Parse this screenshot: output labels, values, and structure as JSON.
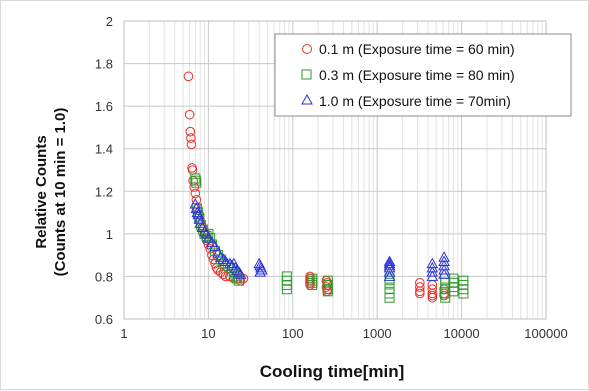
{
  "chart_data": {
    "type": "scatter",
    "xlabel": "Cooling time[min]",
    "ylabel_line1": "Relative Counts",
    "ylabel_line2": "(Counts at 10 min = 1.0)",
    "x_scale": "log",
    "xlim": [
      1,
      100000
    ],
    "ylim": [
      0.6,
      2.0
    ],
    "x_ticks": [
      "1",
      "10",
      "100",
      "1000",
      "10000",
      "100000"
    ],
    "y_ticks": [
      "0.6",
      "0.8",
      "1",
      "1.2",
      "1.4",
      "1.6",
      "1.8",
      "2"
    ],
    "grid": true,
    "legend_position": "top-right",
    "series": [
      {
        "name": "0.1 m (Exposure time = 60 min)",
        "marker": "circle",
        "color": "#e8302a",
        "points": [
          [
            5.8,
            1.74
          ],
          [
            6.0,
            1.56
          ],
          [
            6.1,
            1.48
          ],
          [
            6.2,
            1.45
          ],
          [
            6.3,
            1.42
          ],
          [
            6.4,
            1.31
          ],
          [
            6.5,
            1.3
          ],
          [
            6.6,
            1.25
          ],
          [
            6.8,
            1.22
          ],
          [
            7.0,
            1.19
          ],
          [
            7.2,
            1.16
          ],
          [
            7.5,
            1.12
          ],
          [
            7.8,
            1.09
          ],
          [
            8.0,
            1.06
          ],
          [
            8.5,
            1.03
          ],
          [
            9.0,
            1.0
          ],
          [
            9.5,
            0.97
          ],
          [
            10,
            0.95
          ],
          [
            10.5,
            0.93
          ],
          [
            11,
            0.9
          ],
          [
            11.5,
            0.88
          ],
          [
            12,
            0.86
          ],
          [
            12.5,
            0.84
          ],
          [
            13,
            0.83
          ],
          [
            14,
            0.82
          ],
          [
            15,
            0.81
          ],
          [
            16,
            0.8
          ],
          [
            18,
            0.8
          ],
          [
            20,
            0.79
          ],
          [
            22,
            0.79
          ],
          [
            24,
            0.78
          ],
          [
            26,
            0.79
          ],
          [
            160,
            0.8
          ],
          [
            160,
            0.79
          ],
          [
            160,
            0.78
          ],
          [
            160,
            0.77
          ],
          [
            160,
            0.76
          ],
          [
            250,
            0.78
          ],
          [
            255,
            0.77
          ],
          [
            260,
            0.76
          ],
          [
            250,
            0.75
          ],
          [
            260,
            0.74
          ],
          [
            255,
            0.73
          ],
          [
            3200,
            0.77
          ],
          [
            3200,
            0.75
          ],
          [
            3200,
            0.73
          ],
          [
            3200,
            0.72
          ],
          [
            4500,
            0.76
          ],
          [
            4500,
            0.74
          ],
          [
            4500,
            0.72
          ],
          [
            4500,
            0.71
          ],
          [
            4500,
            0.7
          ],
          [
            6200,
            0.74
          ],
          [
            6200,
            0.72
          ],
          [
            6200,
            0.71
          ]
        ]
      },
      {
        "name": "0.3 m (Exposure time = 80 min)",
        "marker": "square",
        "color": "#2e9a2e",
        "points": [
          [
            7.0,
            1.26
          ],
          [
            7.1,
            1.25
          ],
          [
            7.2,
            1.24
          ],
          [
            7.3,
            1.12
          ],
          [
            7.5,
            1.1
          ],
          [
            7.8,
            1.07
          ],
          [
            8.2,
            1.04
          ],
          [
            8.6,
            1.02
          ],
          [
            9.0,
            1.0
          ],
          [
            9.5,
            0.99
          ],
          [
            10,
            1.0
          ],
          [
            10.5,
            0.98
          ],
          [
            11,
            0.95
          ],
          [
            12,
            0.92
          ],
          [
            13,
            0.9
          ],
          [
            14,
            0.88
          ],
          [
            15,
            0.86
          ],
          [
            17,
            0.85
          ],
          [
            19,
            0.84
          ],
          [
            20,
            0.82
          ],
          [
            21,
            0.8
          ],
          [
            22,
            0.79
          ],
          [
            23,
            0.78
          ],
          [
            85,
            0.8
          ],
          [
            85,
            0.78
          ],
          [
            85,
            0.76
          ],
          [
            85,
            0.74
          ],
          [
            170,
            0.79
          ],
          [
            170,
            0.78
          ],
          [
            170,
            0.77
          ],
          [
            170,
            0.76
          ],
          [
            260,
            0.78
          ],
          [
            260,
            0.76
          ],
          [
            260,
            0.74
          ],
          [
            260,
            0.73
          ],
          [
            1400,
            0.79
          ],
          [
            1400,
            0.77
          ],
          [
            1400,
            0.74
          ],
          [
            1400,
            0.72
          ],
          [
            1400,
            0.7
          ],
          [
            6400,
            0.79
          ],
          [
            6400,
            0.77
          ],
          [
            6400,
            0.74
          ],
          [
            6400,
            0.72
          ],
          [
            6400,
            0.7
          ],
          [
            8000,
            0.79
          ],
          [
            8000,
            0.77
          ],
          [
            8000,
            0.75
          ],
          [
            8000,
            0.73
          ],
          [
            10500,
            0.78
          ],
          [
            10500,
            0.76
          ],
          [
            10500,
            0.74
          ],
          [
            10500,
            0.72
          ]
        ]
      },
      {
        "name": "1.0 m (Exposure time = 70min)",
        "marker": "triangle",
        "color": "#2a34d8",
        "points": [
          [
            7.0,
            1.14
          ],
          [
            7.2,
            1.12
          ],
          [
            7.4,
            1.1
          ],
          [
            7.6,
            1.09
          ],
          [
            7.8,
            1.07
          ],
          [
            8.0,
            1.05
          ],
          [
            8.5,
            1.03
          ],
          [
            9.0,
            1.01
          ],
          [
            9.5,
            1.0
          ],
          [
            10,
            0.98
          ],
          [
            11,
            0.96
          ],
          [
            12,
            0.94
          ],
          [
            13,
            0.91
          ],
          [
            14,
            0.89
          ],
          [
            15,
            0.88
          ],
          [
            16,
            0.87
          ],
          [
            18,
            0.86
          ],
          [
            19,
            0.85
          ],
          [
            20,
            0.86
          ],
          [
            21,
            0.84
          ],
          [
            22,
            0.83
          ],
          [
            23,
            0.82
          ],
          [
            24,
            0.81
          ],
          [
            40,
            0.86
          ],
          [
            41,
            0.85
          ],
          [
            42,
            0.84
          ],
          [
            43,
            0.83
          ],
          [
            41,
            0.82
          ],
          [
            1400,
            0.87
          ],
          [
            1400,
            0.86
          ],
          [
            1400,
            0.85
          ],
          [
            1400,
            0.84
          ],
          [
            1400,
            0.82
          ],
          [
            1400,
            0.8
          ],
          [
            4500,
            0.86
          ],
          [
            4500,
            0.84
          ],
          [
            4500,
            0.82
          ],
          [
            4500,
            0.8
          ],
          [
            6200,
            0.89
          ],
          [
            6200,
            0.87
          ],
          [
            6200,
            0.85
          ],
          [
            6200,
            0.83
          ],
          [
            6200,
            0.81
          ]
        ]
      }
    ]
  }
}
